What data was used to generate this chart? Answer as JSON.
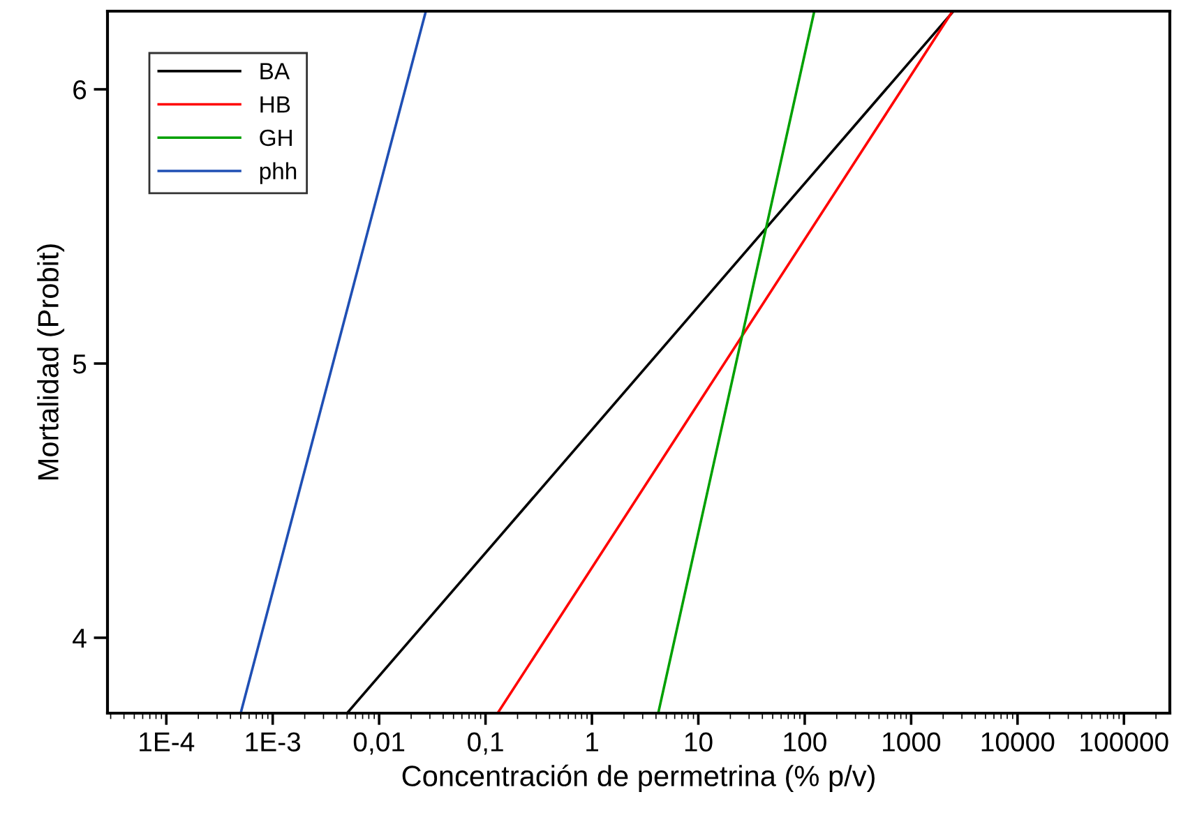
{
  "chart_data": {
    "type": "line",
    "xlabel": "Concentración de permetrina (% p/v)",
    "ylabel": "Mortalidad (Probit)",
    "log": "x",
    "xlim": [
      2.8e-05,
      270000.0
    ],
    "ylim": [
      3.725,
      6.285
    ],
    "xticks": [
      {
        "value": 0.0001,
        "label": "1E-4"
      },
      {
        "value": 0.001,
        "label": "1E-3"
      },
      {
        "value": 0.01,
        "label": "0,01"
      },
      {
        "value": 0.1,
        "label": "0,1"
      },
      1,
      10,
      100,
      1000,
      10000,
      100000
    ],
    "yticks": [
      4,
      5,
      6
    ],
    "grid": false,
    "legend": "top left",
    "marker": "none",
    "line_style": "solid",
    "series": [
      {
        "name": "BA",
        "color": "#000000",
        "x": [
          0.005,
          2500
        ],
        "values": [
          3.725,
          6.285
        ]
      },
      {
        "name": "HB",
        "color": "#ff0000",
        "x": [
          0.13,
          2450
        ],
        "values": [
          3.725,
          6.285
        ]
      },
      {
        "name": "GH",
        "color": "#00a000",
        "x": [
          4.2,
          123
        ],
        "values": [
          3.725,
          6.285
        ]
      },
      {
        "name": "phh",
        "color": "#1f4fb4",
        "x": [
          0.0005,
          0.0275
        ],
        "values": [
          3.725,
          6.285
        ]
      }
    ]
  }
}
